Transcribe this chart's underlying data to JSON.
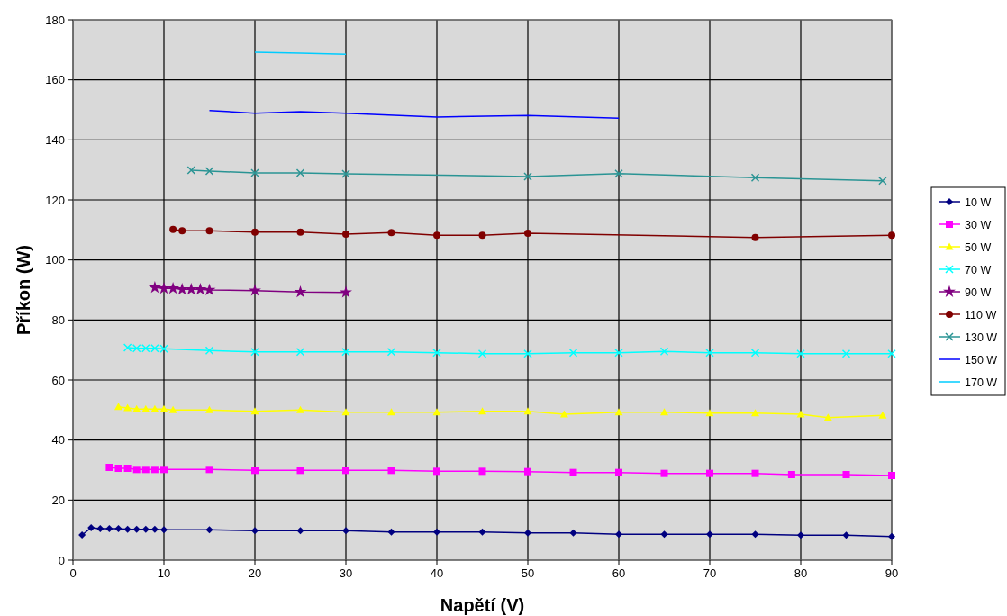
{
  "chart_data": {
    "type": "line",
    "xlabel": "Napětí (V)",
    "ylabel": "Příkon (W)",
    "xlim": [
      0,
      90
    ],
    "ylim": [
      0,
      180
    ],
    "xticks": [
      0,
      10,
      20,
      30,
      40,
      50,
      60,
      70,
      80,
      90
    ],
    "yticks": [
      0,
      20,
      40,
      60,
      80,
      100,
      120,
      140,
      160,
      180
    ],
    "grid": true,
    "legend": "right",
    "series": [
      {
        "name": "10 W",
        "color": "#000080",
        "marker": "diamond",
        "x": [
          1,
          2,
          3,
          4,
          5,
          6,
          7,
          8,
          9,
          10,
          15,
          20,
          25,
          30,
          35,
          40,
          45,
          50,
          55,
          60,
          65,
          70,
          75,
          80,
          85,
          90
        ],
        "values": [
          8.4,
          10.8,
          10.5,
          10.5,
          10.5,
          10.3,
          10.3,
          10.3,
          10.3,
          10.1,
          10.1,
          9.8,
          9.8,
          9.8,
          9.4,
          9.4,
          9.4,
          9.1,
          9.1,
          8.6,
          8.6,
          8.6,
          8.6,
          8.3,
          8.3,
          7.9
        ]
      },
      {
        "name": "30 W",
        "color": "#ff00ff",
        "marker": "square",
        "x": [
          4,
          5,
          6,
          7,
          8,
          9,
          10,
          15,
          20,
          25,
          30,
          35,
          40,
          45,
          50,
          55,
          60,
          65,
          70,
          75,
          79,
          85,
          90
        ],
        "values": [
          30.9,
          30.6,
          30.6,
          30.2,
          30.2,
          30.2,
          30.2,
          30.2,
          29.9,
          29.9,
          29.9,
          29.9,
          29.6,
          29.6,
          29.5,
          29.2,
          29.2,
          28.9,
          28.9,
          28.9,
          28.5,
          28.5,
          28.2
        ]
      },
      {
        "name": "50 W",
        "color": "#ffff00",
        "marker": "triangle",
        "x": [
          5,
          6,
          7,
          8,
          9,
          10,
          11,
          15,
          20,
          25,
          30,
          35,
          40,
          45,
          50,
          54,
          60,
          65,
          70,
          75,
          80,
          83,
          89
        ],
        "values": [
          51.1,
          50.7,
          50.3,
          50.3,
          50.3,
          50.3,
          50.0,
          50.0,
          49.6,
          50.0,
          49.3,
          49.3,
          49.3,
          49.6,
          49.6,
          48.6,
          49.3,
          49.3,
          49.0,
          49.0,
          48.6,
          47.5,
          48.2
        ]
      },
      {
        "name": "70 W",
        "color": "#00ffff",
        "marker": "cross",
        "x": [
          6,
          7,
          8,
          9,
          10,
          15,
          20,
          25,
          30,
          35,
          40,
          45,
          50,
          55,
          60,
          65,
          70,
          75,
          80,
          85,
          90
        ],
        "values": [
          70.8,
          70.6,
          70.6,
          70.6,
          70.4,
          69.8,
          69.4,
          69.4,
          69.4,
          69.4,
          69.1,
          68.8,
          68.8,
          69.1,
          69.1,
          69.5,
          69.1,
          69.1,
          68.8,
          68.8,
          68.8
        ]
      },
      {
        "name": "90 W",
        "color": "#800080",
        "marker": "star",
        "x": [
          9,
          10,
          11,
          12,
          13,
          14,
          15,
          20,
          25,
          30
        ],
        "values": [
          90.8,
          90.5,
          90.5,
          90.2,
          90.2,
          90.2,
          90.0,
          89.8,
          89.3,
          89.2
        ]
      },
      {
        "name": "110 W",
        "color": "#800000",
        "marker": "circle",
        "x": [
          11,
          12,
          15,
          20,
          25,
          30,
          35,
          40,
          45,
          50,
          75,
          90
        ],
        "values": [
          110.2,
          109.7,
          109.7,
          109.3,
          109.3,
          108.6,
          109.1,
          108.2,
          108.2,
          108.9,
          107.5,
          108.2
        ]
      },
      {
        "name": "130 W",
        "color": "#2a9494",
        "marker": "cross",
        "x": [
          13,
          15,
          20,
          25,
          30,
          50,
          60,
          75,
          89
        ],
        "values": [
          129.9,
          129.6,
          129.0,
          129.0,
          128.7,
          127.8,
          128.8,
          127.4,
          126.4
        ]
      },
      {
        "name": "150 W",
        "color": "#0000ff",
        "marker": "none",
        "x": [
          15,
          20,
          25,
          30,
          40,
          50,
          60
        ],
        "values": [
          149.8,
          148.9,
          149.4,
          148.9,
          147.6,
          148.1,
          147.2
        ]
      },
      {
        "name": "170 W",
        "color": "#00ccff",
        "marker": "none",
        "x": [
          20,
          25,
          30
        ],
        "values": [
          169.2,
          168.9,
          168.5
        ]
      }
    ]
  }
}
